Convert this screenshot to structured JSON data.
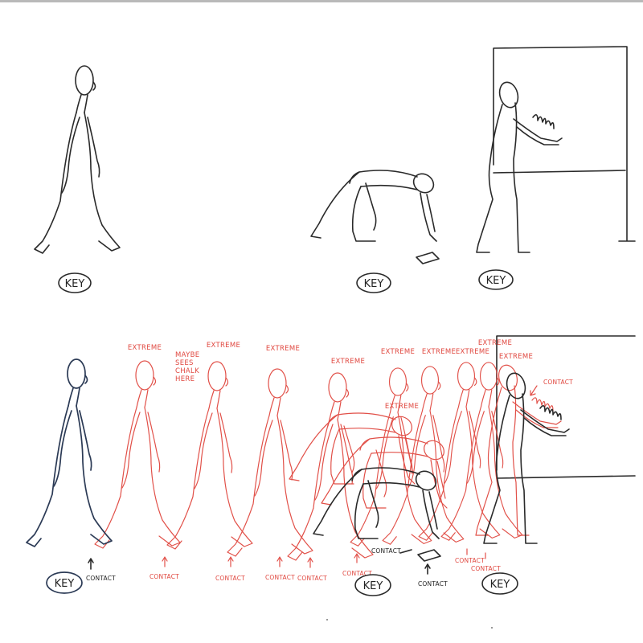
{
  "key_label": "KEY",
  "extreme_label": "EXTREME",
  "contact_label": "CONTACT",
  "note_lines": [
    "MAYBE",
    "SEES",
    "CHALK",
    "HERE"
  ],
  "colors": {
    "pencil": "#2a2a2a",
    "blue_pencil": "#2b3a55",
    "red_pencil": "#e0473f"
  }
}
